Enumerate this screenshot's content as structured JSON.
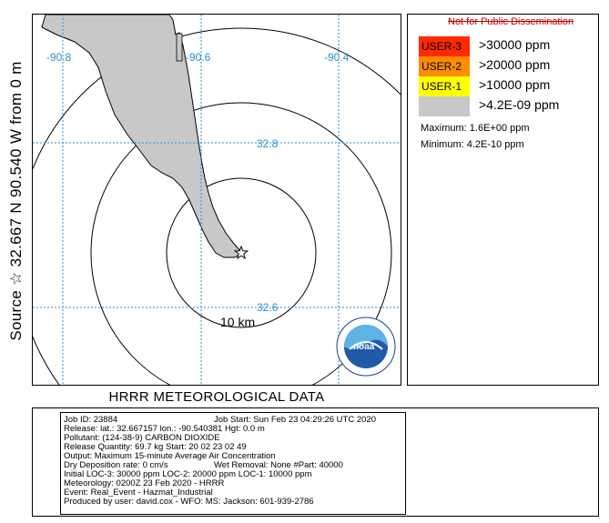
{
  "side_label": "Source ☆ 32.667 N 90.540 W from 0 m",
  "map": {
    "lon_labels": [
      "-90.8",
      "-90.6",
      "-90.4"
    ],
    "lat_labels": [
      "32.8",
      "32.6"
    ],
    "range_label": "10 km",
    "plume_color": "#c8c8c8",
    "grid_color": "#2a8fd0",
    "logo_text": "noaa",
    "logo_ring_text": "NATIONAL OCEANIC AND ATMOSPHERIC ADMINISTRATION • U.S. DEPARTMENT OF COMMERCE"
  },
  "legend": {
    "header": "Not for Public Dissemination",
    "items": [
      {
        "label": "USER-3",
        "threshold": ">30000 ppm",
        "color": "#ff2a00"
      },
      {
        "label": "USER-2",
        "threshold": ">20000 ppm",
        "color": "#ff8c00"
      },
      {
        "label": "USER-1",
        "threshold": ">10000 ppm",
        "color": "#ffff00"
      },
      {
        "label": "",
        "threshold": ">4.2E-09 ppm",
        "color": "#c8c8c8"
      }
    ],
    "maximum": "Maximum: 1.6E+00 ppm",
    "minimum": "Minimum: 4.2E-10 ppm"
  },
  "title": "HRRR METEOROLOGICAL DATA",
  "info": {
    "job_id": "Job ID: 23884",
    "job_start": "Job Start: Sun Feb 23 04:29:26 UTC 2020",
    "release": "Release:   lat.: 32.667157   lon.: -90.540381     Hgt: 0.0 m",
    "pollutant": "Pollutant: (124-38-9) CARBON DIOXIDE",
    "quantity": "Release Quantity: 69.7 kg  Start: 20 02 23 02 49",
    "output": "Output: Maximum 15-minute Average Air Concentration",
    "deposition": "Dry Deposition rate: 0 cm/s",
    "wet_removal": "Wet Removal:   None  #Part: 40000",
    "loc": "Initial LOC-3: 30000 ppm   LOC-2: 20000 ppm   LOC-1: 10000 ppm",
    "meteorology": "Meteorology: 0200Z 23 Feb 2020 - HRRR",
    "event": "Event: Real_Event - Hazmat_Industrial",
    "produced_by": "Produced by user: david.cox - WFO: MS: Jackson: 601-939-2786"
  }
}
